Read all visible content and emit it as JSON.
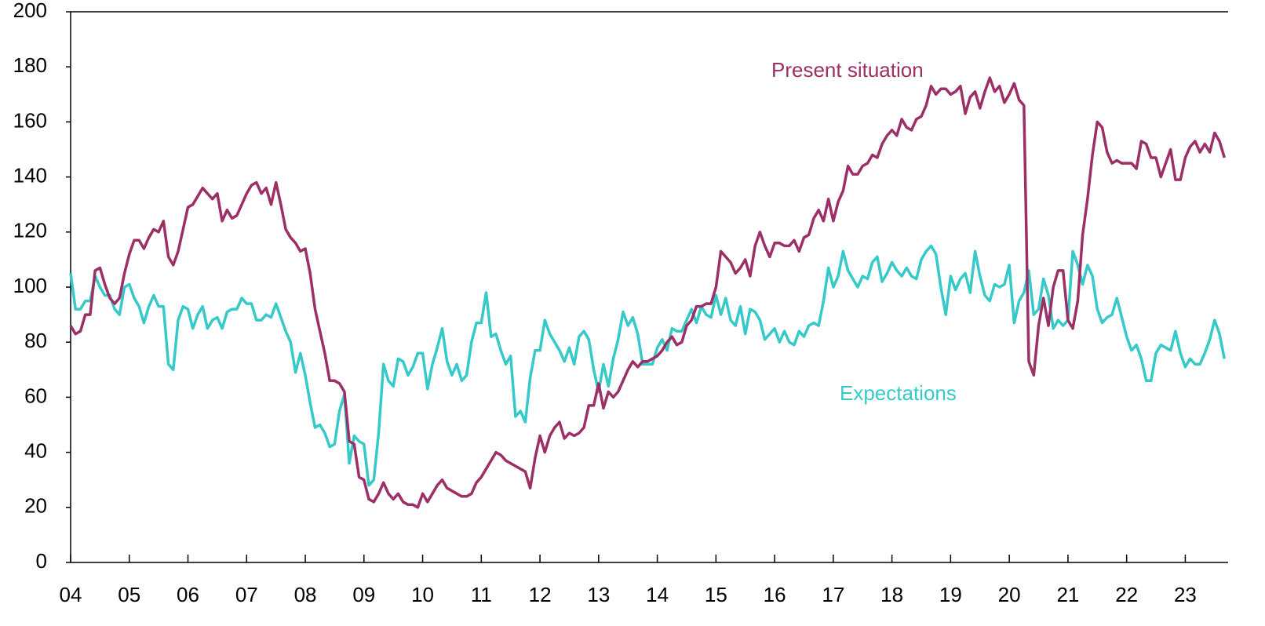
{
  "chart_data": {
    "type": "line",
    "x": [
      2004,
      2004.083,
      2004.167,
      2004.25,
      2004.333,
      2004.417,
      2004.5,
      2004.583,
      2004.667,
      2004.75,
      2004.833,
      2004.917,
      2005,
      2005.083,
      2005.167,
      2005.25,
      2005.333,
      2005.417,
      2005.5,
      2005.583,
      2005.667,
      2005.75,
      2005.833,
      2005.917,
      2006,
      2006.083,
      2006.167,
      2006.25,
      2006.333,
      2006.417,
      2006.5,
      2006.583,
      2006.667,
      2006.75,
      2006.833,
      2006.917,
      2007,
      2007.083,
      2007.167,
      2007.25,
      2007.333,
      2007.417,
      2007.5,
      2007.583,
      2007.667,
      2007.75,
      2007.833,
      2007.917,
      2008,
      2008.083,
      2008.167,
      2008.25,
      2008.333,
      2008.417,
      2008.5,
      2008.583,
      2008.667,
      2008.75,
      2008.833,
      2008.917,
      2009,
      2009.083,
      2009.167,
      2009.25,
      2009.333,
      2009.417,
      2009.5,
      2009.583,
      2009.667,
      2009.75,
      2009.833,
      2009.917,
      2010,
      2010.083,
      2010.167,
      2010.25,
      2010.333,
      2010.417,
      2010.5,
      2010.583,
      2010.667,
      2010.75,
      2010.833,
      2010.917,
      2011,
      2011.083,
      2011.167,
      2011.25,
      2011.333,
      2011.417,
      2011.5,
      2011.583,
      2011.667,
      2011.75,
      2011.833,
      2011.917,
      2012,
      2012.083,
      2012.167,
      2012.25,
      2012.333,
      2012.417,
      2012.5,
      2012.583,
      2012.667,
      2012.75,
      2012.833,
      2012.917,
      2013,
      2013.083,
      2013.167,
      2013.25,
      2013.333,
      2013.417,
      2013.5,
      2013.583,
      2013.667,
      2013.75,
      2013.833,
      2013.917,
      2014,
      2014.083,
      2014.167,
      2014.25,
      2014.333,
      2014.417,
      2014.5,
      2014.583,
      2014.667,
      2014.75,
      2014.833,
      2014.917,
      2015,
      2015.083,
      2015.167,
      2015.25,
      2015.333,
      2015.417,
      2015.5,
      2015.583,
      2015.667,
      2015.75,
      2015.833,
      2015.917,
      2016,
      2016.083,
      2016.167,
      2016.25,
      2016.333,
      2016.417,
      2016.5,
      2016.583,
      2016.667,
      2016.75,
      2016.833,
      2016.917,
      2017,
      2017.083,
      2017.167,
      2017.25,
      2017.333,
      2017.417,
      2017.5,
      2017.583,
      2017.667,
      2017.75,
      2017.833,
      2017.917,
      2018,
      2018.083,
      2018.167,
      2018.25,
      2018.333,
      2018.417,
      2018.5,
      2018.583,
      2018.667,
      2018.75,
      2018.833,
      2018.917,
      2019,
      2019.083,
      2019.167,
      2019.25,
      2019.333,
      2019.417,
      2019.5,
      2019.583,
      2019.667,
      2019.75,
      2019.833,
      2019.917,
      2020,
      2020.083,
      2020.167,
      2020.25,
      2020.333,
      2020.417,
      2020.5,
      2020.583,
      2020.667,
      2020.75,
      2020.833,
      2020.917,
      2021,
      2021.083,
      2021.167,
      2021.25,
      2021.333,
      2021.417,
      2021.5,
      2021.583,
      2021.667,
      2021.75,
      2021.833,
      2021.917,
      2022,
      2022.083,
      2022.167,
      2022.25,
      2022.333,
      2022.417,
      2022.5,
      2022.583,
      2022.667,
      2022.75,
      2022.833,
      2022.917,
      2023,
      2023.083,
      2023.167,
      2023.25,
      2023.333,
      2023.417,
      2023.5,
      2023.583,
      2023.667
    ],
    "series": [
      {
        "name": "Present situation",
        "color": "#9b2f66",
        "values": [
          86,
          83,
          84,
          90,
          90,
          106,
          107,
          101,
          96,
          94,
          96,
          105,
          112,
          117,
          117,
          114,
          118,
          121,
          120,
          124,
          111,
          108,
          113,
          121,
          129,
          130,
          133,
          136,
          134,
          132,
          134,
          124,
          128,
          125,
          126,
          130,
          134,
          137,
          138,
          134,
          136,
          130,
          138,
          130,
          121,
          118,
          116,
          113,
          114,
          105,
          92,
          84,
          76,
          66,
          66,
          65,
          62,
          44,
          43,
          31,
          30,
          23,
          22,
          25,
          29,
          25,
          23,
          25,
          22,
          21,
          21,
          20,
          25,
          22,
          25,
          28,
          30,
          27,
          26,
          25,
          24,
          24,
          25,
          29,
          31,
          34,
          37,
          40,
          39,
          37,
          36,
          35,
          34,
          33,
          27,
          38,
          46,
          40,
          46,
          49,
          51,
          45,
          47,
          46,
          47,
          49,
          57,
          57,
          65,
          56,
          62,
          60,
          62,
          66,
          70,
          73,
          71,
          73,
          73,
          74,
          75,
          77,
          80,
          82,
          79,
          80,
          86,
          88,
          93,
          93,
          94,
          94,
          100,
          113,
          111,
          109,
          105,
          107,
          110,
          104,
          115,
          120,
          115,
          111,
          116,
          116,
          115,
          115,
          117,
          113,
          118,
          119,
          125,
          128,
          124,
          132,
          124,
          131,
          135,
          144,
          141,
          141,
          144,
          145,
          148,
          147,
          152,
          155,
          157,
          155,
          161,
          158,
          157,
          161,
          162,
          166,
          173,
          170,
          172,
          172,
          170,
          171,
          173,
          163,
          169,
          171,
          165,
          171,
          176,
          171,
          173,
          167,
          170,
          174,
          168,
          166,
          73,
          68,
          86,
          96,
          86,
          100,
          106,
          106,
          88,
          85,
          95,
          119,
          132,
          148,
          160,
          158,
          149,
          145,
          146,
          145,
          145,
          145,
          143,
          153,
          152,
          147,
          147,
          140,
          145,
          150,
          139,
          139,
          147,
          151,
          153,
          149,
          152,
          149,
          156,
          153,
          147
        ]
      },
      {
        "name": "Expectations",
        "color": "#36c9c9",
        "values": [
          105,
          92,
          92,
          95,
          95,
          104,
          100,
          97,
          97,
          92,
          90,
          100,
          101,
          96,
          93,
          87,
          93,
          97,
          93,
          93,
          72,
          70,
          88,
          93,
          92,
          85,
          90,
          93,
          85,
          88,
          89,
          85,
          91,
          92,
          92,
          96,
          94,
          94,
          88,
          88,
          90,
          89,
          94,
          89,
          84,
          80,
          69,
          76,
          68,
          58,
          49,
          50,
          47,
          42,
          43,
          55,
          61,
          36,
          46,
          44,
          43,
          28,
          30,
          47,
          72,
          66,
          64,
          74,
          73,
          68,
          71,
          76,
          76,
          63,
          72,
          78,
          85,
          73,
          68,
          72,
          66,
          68,
          80,
          87,
          87,
          98,
          82,
          83,
          77,
          72,
          75,
          53,
          55,
          51,
          67,
          77,
          77,
          88,
          83,
          80,
          77,
          73,
          78,
          72,
          82,
          84,
          81,
          70,
          62,
          72,
          64,
          74,
          81,
          91,
          86,
          89,
          83,
          72,
          72,
          72,
          78,
          81,
          77,
          85,
          84,
          84,
          88,
          92,
          87,
          93,
          90,
          89,
          97,
          90,
          96,
          88,
          86,
          93,
          83,
          92,
          91,
          88,
          81,
          83,
          85,
          80,
          84,
          80,
          79,
          84,
          82,
          86,
          87,
          86,
          95,
          107,
          100,
          104,
          113,
          106,
          103,
          100,
          104,
          103,
          109,
          111,
          102,
          105,
          109,
          106,
          104,
          107,
          104,
          103,
          110,
          113,
          115,
          112,
          100,
          90,
          104,
          99,
          103,
          105,
          98,
          113,
          104,
          97,
          95,
          101,
          100,
          101,
          108,
          87,
          95,
          98,
          106,
          90,
          92,
          103,
          97,
          85,
          88,
          86,
          88,
          113,
          108,
          101,
          108,
          104,
          92,
          87,
          89,
          90,
          96,
          89,
          82,
          77,
          79,
          74,
          66,
          66,
          76,
          79,
          78,
          77,
          84,
          76,
          71,
          74,
          72,
          72,
          76,
          81,
          88,
          83,
          74
        ]
      }
    ],
    "annotations": [
      "Present situation",
      "Expectations"
    ],
    "xlim": [
      2004,
      2023.73
    ],
    "xticks": [
      {
        "value": 2004,
        "label": "04"
      },
      {
        "value": 2005,
        "label": "05"
      },
      {
        "value": 2006,
        "label": "06"
      },
      {
        "value": 2007,
        "label": "07"
      },
      {
        "value": 2008,
        "label": "08"
      },
      {
        "value": 2009,
        "label": "09"
      },
      {
        "value": 2010,
        "label": "10"
      },
      {
        "value": 2011,
        "label": "11"
      },
      {
        "value": 2012,
        "label": "12"
      },
      {
        "value": 2013,
        "label": "13"
      },
      {
        "value": 2014,
        "label": "14"
      },
      {
        "value": 2015,
        "label": "15"
      },
      {
        "value": 2016,
        "label": "16"
      },
      {
        "value": 2017,
        "label": "17"
      },
      {
        "value": 2018,
        "label": "18"
      },
      {
        "value": 2019,
        "label": "19"
      },
      {
        "value": 2020,
        "label": "20"
      },
      {
        "value": 2021,
        "label": "21"
      },
      {
        "value": 2022,
        "label": "22"
      },
      {
        "value": 2023,
        "label": "23"
      }
    ],
    "ylim": [
      0,
      200
    ],
    "yticks": [
      0,
      20,
      40,
      60,
      80,
      100,
      120,
      140,
      160,
      180,
      200
    ]
  }
}
